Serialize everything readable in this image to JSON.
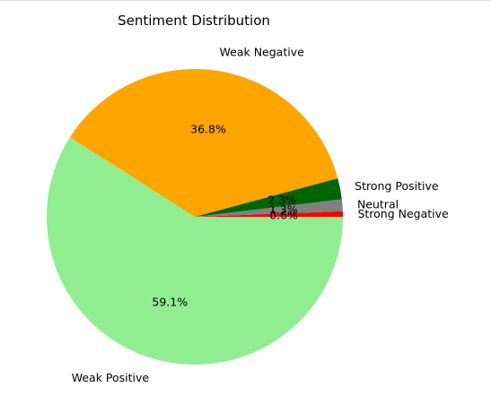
{
  "chart_data": {
    "type": "pie",
    "title": "Sentiment Distribution",
    "slices": [
      {
        "label": "Strong Negative",
        "value": 0.6,
        "pct_label": "0.6%",
        "color": "#ff0000"
      },
      {
        "label": "Neutral",
        "value": 1.3,
        "pct_label": "1.3%",
        "color": "#808080"
      },
      {
        "label": "Strong Positive",
        "value": 2.3,
        "pct_label": "2.3%",
        "color": "#006400"
      },
      {
        "label": "Weak Negative",
        "value": 36.8,
        "pct_label": "36.8%",
        "color": "#ffa500"
      },
      {
        "label": "Weak Positive",
        "value": 59.1,
        "pct_label": "59.1%",
        "color": "#90ee90"
      }
    ],
    "legend": "none"
  }
}
